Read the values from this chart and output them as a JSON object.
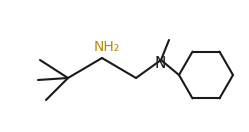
{
  "bg_color": "#ffffff",
  "line_color": "#1a1a1a",
  "text_color": "#1a1a1a",
  "nh2_color": "#b8860b",
  "line_width": 1.5,
  "font_size": 9,
  "figsize": [
    2.49,
    1.32
  ],
  "dpi": 100
}
